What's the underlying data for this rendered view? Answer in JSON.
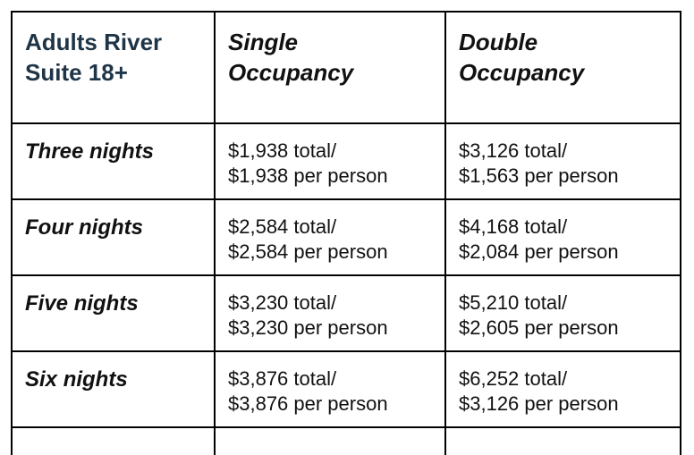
{
  "table": {
    "corner_title": [
      "Adults River",
      "Suite 18+"
    ],
    "columns": [
      {
        "title": [
          "Single",
          "Occupancy"
        ]
      },
      {
        "title": [
          "Double",
          "Occupancy"
        ]
      }
    ],
    "rows": [
      {
        "label": "Three nights",
        "single": {
          "total": "$1,938 total/",
          "per_person": "$1,938 per person"
        },
        "double": {
          "total": "$3,126 total/",
          "per_person": "$1,563 per person"
        }
      },
      {
        "label": "Four nights",
        "single": {
          "total": "$2,584 total/",
          "per_person": "$2,584 per person"
        },
        "double": {
          "total": "$4,168 total/",
          "per_person": "$2,084 per person"
        }
      },
      {
        "label": "Five nights",
        "single": {
          "total": "$3,230 total/",
          "per_person": "$3,230 per person"
        },
        "double": {
          "total": "$5,210 total/",
          "per_person": "$2,605 per person"
        }
      },
      {
        "label": "Six nights",
        "single": {
          "total": "$3,876 total/",
          "per_person": "$3,876 per person"
        },
        "double": {
          "total": "$6,252 total/",
          "per_person": "$3,126 per person"
        }
      }
    ]
  }
}
